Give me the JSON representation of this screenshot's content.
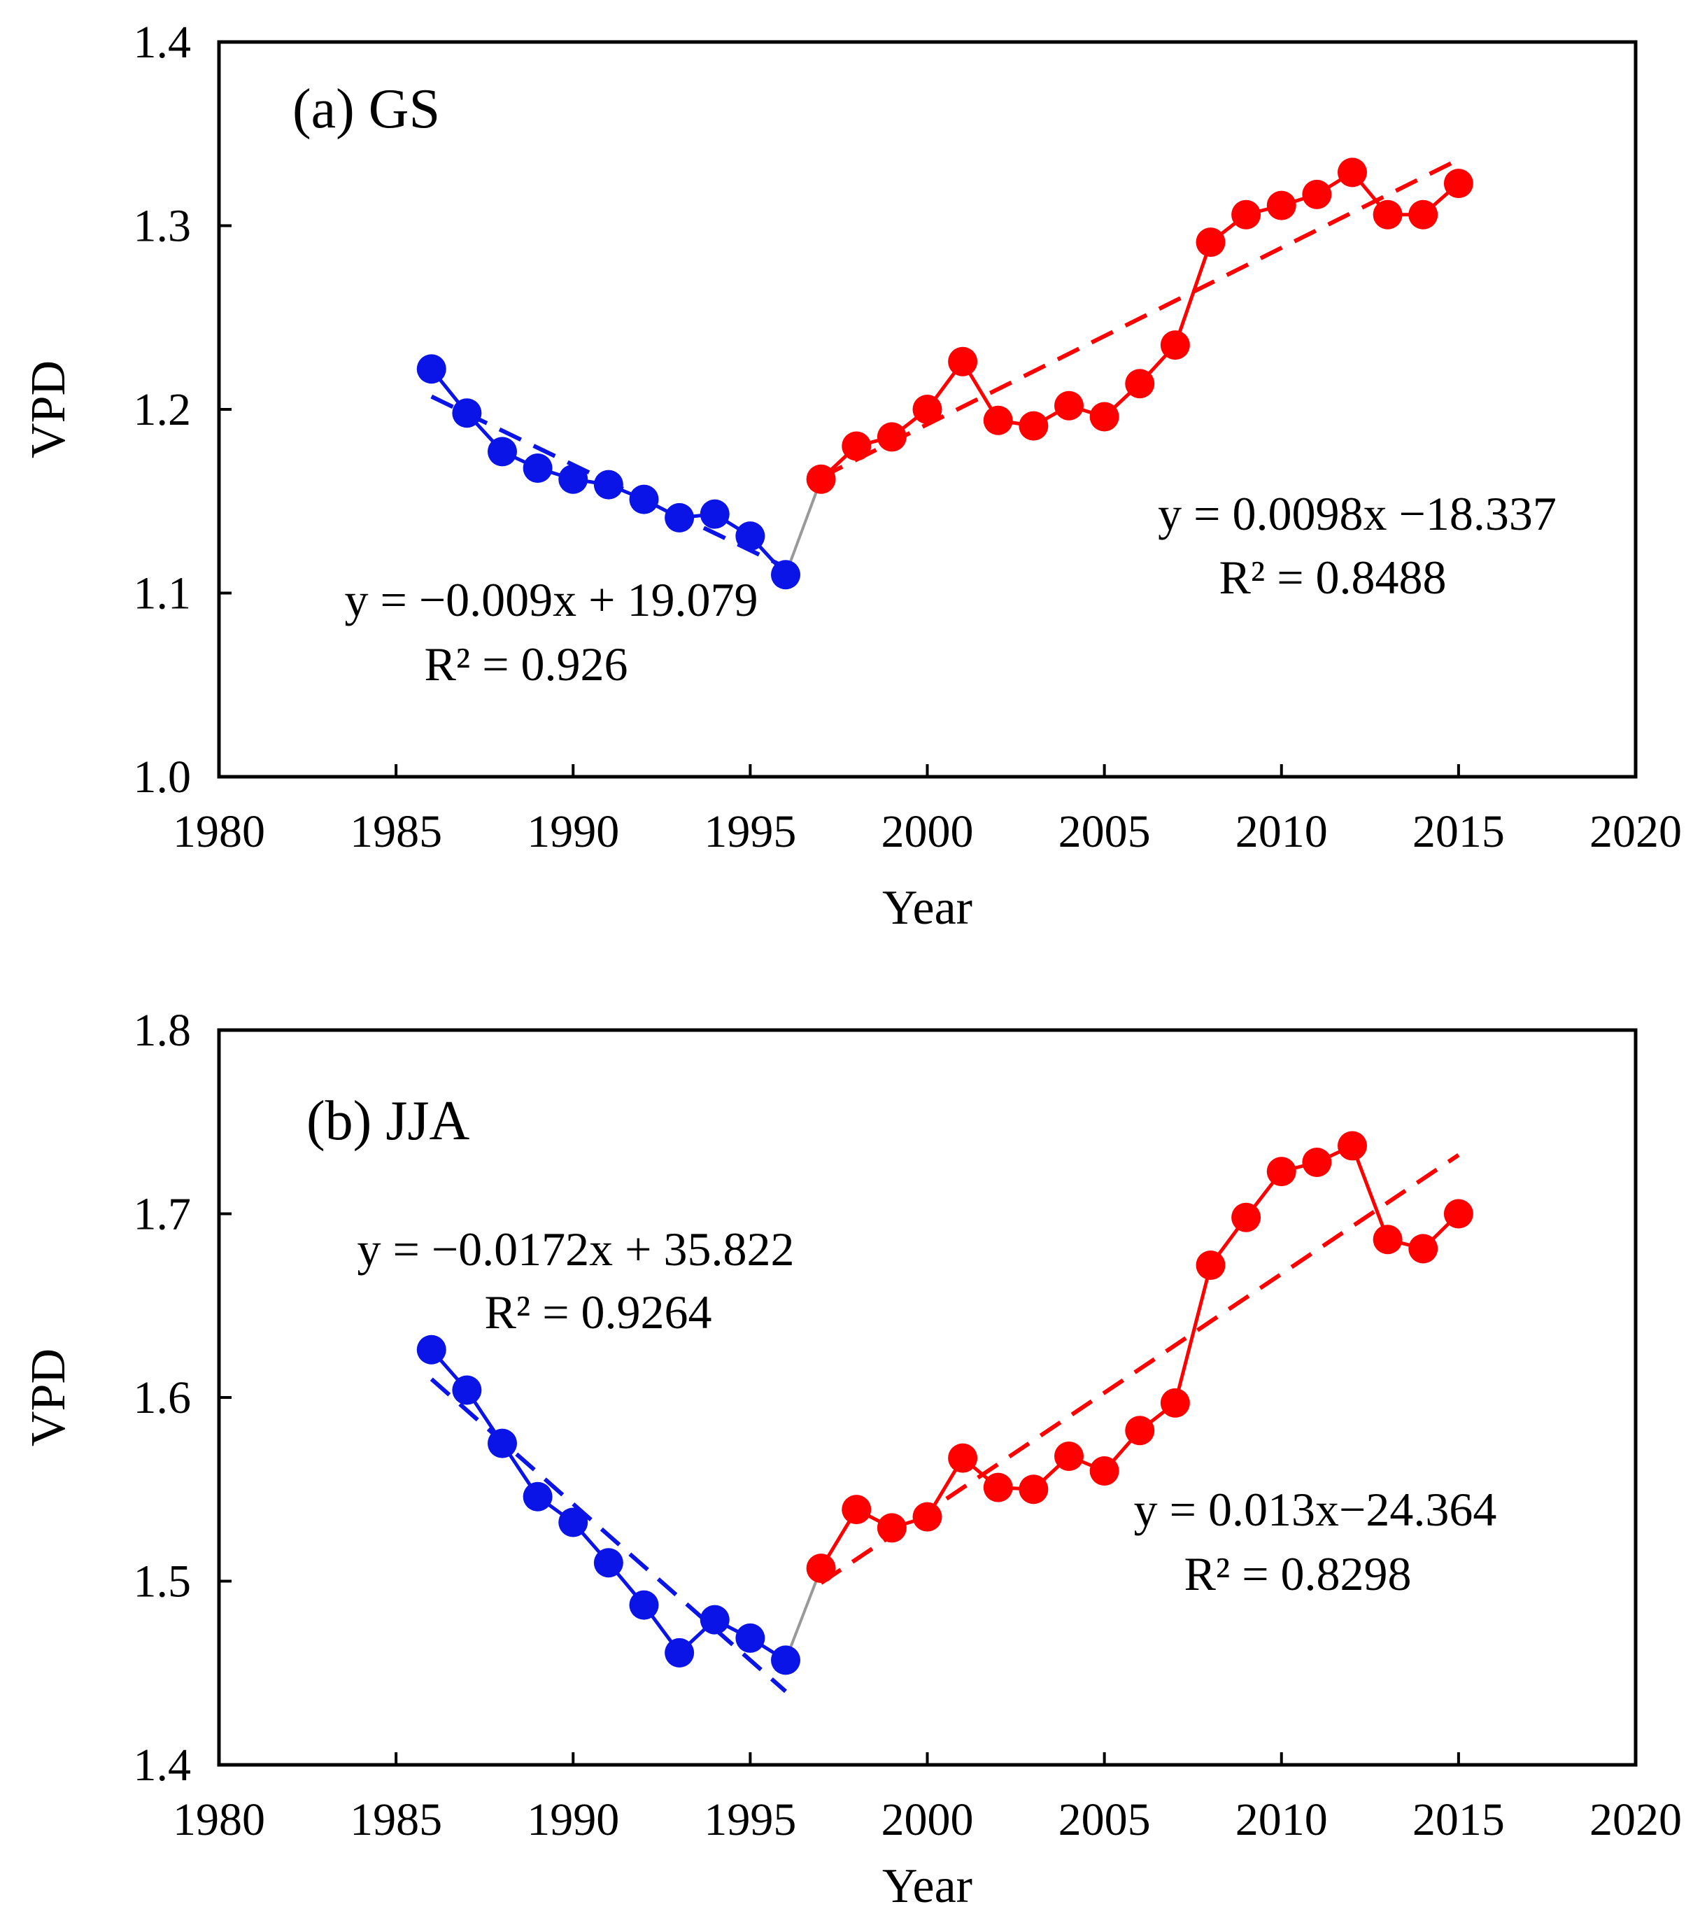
{
  "chart_data": [
    {
      "type": "line",
      "title": "(a) GS",
      "xlabel": "Year",
      "ylabel": "VPD",
      "xlim": [
        1980,
        2020
      ],
      "ylim": [
        1.0,
        1.4
      ],
      "xticks": [
        "1980",
        "1985",
        "1990",
        "1995",
        "2000",
        "2005",
        "2010",
        "2015",
        "2020"
      ],
      "yticks": [
        "1.0",
        "1.1",
        "1.2",
        "1.3",
        "1.4"
      ],
      "grid": false,
      "colors": {
        "early": "#0a14e6",
        "late": "#ff0000",
        "connector": "#999999"
      },
      "series": [
        {
          "name": "1986-1996",
          "x": [
            1986,
            1987,
            1988,
            1989,
            1990,
            1991,
            1992,
            1993,
            1994,
            1995,
            1996
          ],
          "values": [
            1.222,
            1.198,
            1.177,
            1.168,
            1.162,
            1.159,
            1.151,
            1.141,
            1.143,
            1.131,
            1.11
          ]
        },
        {
          "name": "1997-2015",
          "x": [
            1997,
            1998,
            1999,
            2000,
            2001,
            2002,
            2003,
            2004,
            2005,
            2006,
            2007,
            2008,
            2009,
            2010,
            2011,
            2012,
            2013,
            2014,
            2015
          ],
          "values": [
            1.162,
            1.18,
            1.185,
            1.2,
            1.226,
            1.194,
            1.191,
            1.202,
            1.196,
            1.214,
            1.235,
            1.291,
            1.306,
            1.311,
            1.317,
            1.329,
            1.306,
            1.306,
            1.323
          ]
        }
      ],
      "trendlines": [
        {
          "name": "early-trend",
          "x": [
            1986,
            1996
          ],
          "values": [
            1.207,
            1.114
          ]
        },
        {
          "name": "late-trend",
          "x": [
            1997,
            2015
          ],
          "values": [
            1.163,
            1.336
          ]
        }
      ],
      "annotations": [
        {
          "name": "early-equation",
          "text": "y = −0.009x + 19.079"
        },
        {
          "name": "early-r2",
          "text": "R² = 0.926"
        },
        {
          "name": "late-equation",
          "text": "y = 0.0098x −18.337"
        },
        {
          "name": "late-r2",
          "text": "R² = 0.8488"
        }
      ]
    },
    {
      "type": "line",
      "title": "(b) JJA",
      "xlabel": "Year",
      "ylabel": "VPD",
      "xlim": [
        1980,
        2020
      ],
      "ylim": [
        1.4,
        1.8
      ],
      "xticks": [
        "1980",
        "1985",
        "1990",
        "1995",
        "2000",
        "2005",
        "2010",
        "2015",
        "2020"
      ],
      "yticks": [
        "1.4",
        "1.5",
        "1.6",
        "1.7",
        "1.8"
      ],
      "grid": false,
      "colors": {
        "early": "#0a14e6",
        "late": "#ff0000",
        "connector": "#999999"
      },
      "series": [
        {
          "name": "1986-1996",
          "x": [
            1986,
            1987,
            1988,
            1989,
            1990,
            1991,
            1992,
            1993,
            1994,
            1995,
            1996
          ],
          "values": [
            1.626,
            1.604,
            1.575,
            1.546,
            1.532,
            1.51,
            1.487,
            1.461,
            1.479,
            1.469,
            1.457
          ]
        },
        {
          "name": "1997-2015",
          "x": [
            1997,
            1998,
            1999,
            2000,
            2001,
            2002,
            2003,
            2004,
            2005,
            2006,
            2007,
            2008,
            2009,
            2010,
            2011,
            2012,
            2013,
            2014,
            2015
          ],
          "values": [
            1.507,
            1.539,
            1.529,
            1.535,
            1.567,
            1.551,
            1.55,
            1.568,
            1.56,
            1.582,
            1.597,
            1.672,
            1.698,
            1.723,
            1.728,
            1.737,
            1.686,
            1.681,
            1.7
          ]
        }
      ],
      "trendlines": [
        {
          "name": "early-trend",
          "x": [
            1986,
            1996
          ],
          "values": [
            1.61,
            1.44
          ]
        },
        {
          "name": "late-trend",
          "x": [
            1997,
            2015
          ],
          "values": [
            1.499,
            1.732
          ]
        }
      ],
      "annotations": [
        {
          "name": "early-equation",
          "text": "y = −0.0172x + 35.822"
        },
        {
          "name": "early-r2",
          "text": "R² = 0.9264"
        },
        {
          "name": "late-equation",
          "text": "y = 0.013x−24.364"
        },
        {
          "name": "late-r2",
          "text": "R² = 0.8298"
        }
      ]
    }
  ]
}
